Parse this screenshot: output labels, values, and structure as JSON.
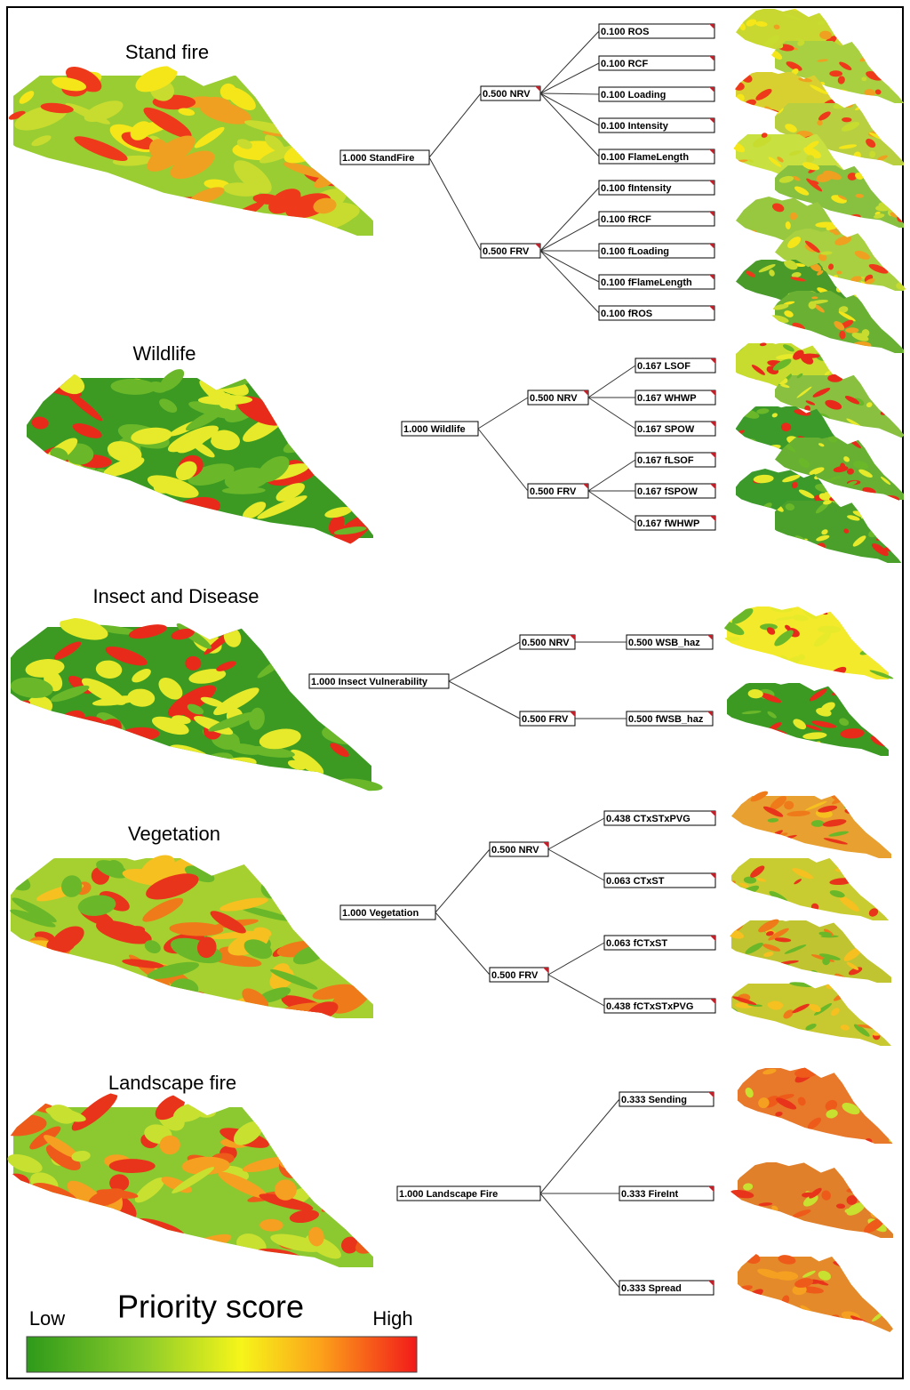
{
  "sections": [
    {
      "title": "Stand fire",
      "tree": {
        "label": "1.000 StandFire",
        "children": [
          {
            "label": "0.500 NRV",
            "children": [
              {
                "label": "0.100 ROS"
              },
              {
                "label": "0.100 RCF"
              },
              {
                "label": "0.100 Loading"
              },
              {
                "label": "0.100 Intensity"
              },
              {
                "label": "0.100 FlameLength"
              }
            ]
          },
          {
            "label": "0.500 FRV",
            "children": [
              {
                "label": "0.100 fIntensity"
              },
              {
                "label": "0.100 fRCF"
              },
              {
                "label": "0.100 fLoading"
              },
              {
                "label": "0.100 fFlameLength"
              },
              {
                "label": "0.100 fROS"
              }
            ]
          }
        ]
      }
    },
    {
      "title": "Wildlife",
      "tree": {
        "label": "1.000 Wildlife",
        "children": [
          {
            "label": "0.500 NRV",
            "children": [
              {
                "label": "0.167 LSOF"
              },
              {
                "label": "0.167 WHWP"
              },
              {
                "label": "0.167 SPOW"
              }
            ]
          },
          {
            "label": "0.500 FRV",
            "children": [
              {
                "label": "0.167 fLSOF"
              },
              {
                "label": "0.167 fSPOW"
              },
              {
                "label": "0.167 fWHWP"
              }
            ]
          }
        ]
      }
    },
    {
      "title": "Insect and Disease",
      "tree": {
        "label": "1.000 Insect Vulnerability",
        "children": [
          {
            "label": "0.500 NRV",
            "children": [
              {
                "label": "0.500 WSB_haz"
              }
            ]
          },
          {
            "label": "0.500 FRV",
            "children": [
              {
                "label": "0.500 fWSB_haz"
              }
            ]
          }
        ]
      }
    },
    {
      "title": "Vegetation",
      "tree": {
        "label": "1.000 Vegetation",
        "children": [
          {
            "label": "0.500 NRV",
            "children": [
              {
                "label": "0.438 CTxSTxPVG"
              },
              {
                "label": "0.063 CTxST"
              }
            ]
          },
          {
            "label": "0.500 FRV",
            "children": [
              {
                "label": "0.063 fCTxST"
              },
              {
                "label": "0.438 fCTxSTxPVG"
              }
            ]
          }
        ]
      }
    },
    {
      "title": "Landscape fire",
      "tree": {
        "label": "1.000 Landscape Fire",
        "children": [
          {
            "label": "0.333 Sending"
          },
          {
            "label": "0.333 FireInt"
          },
          {
            "label": "0.333 Spread"
          }
        ]
      }
    }
  ],
  "legend": {
    "title": "Priority score",
    "low": "Low",
    "high": "High"
  }
}
